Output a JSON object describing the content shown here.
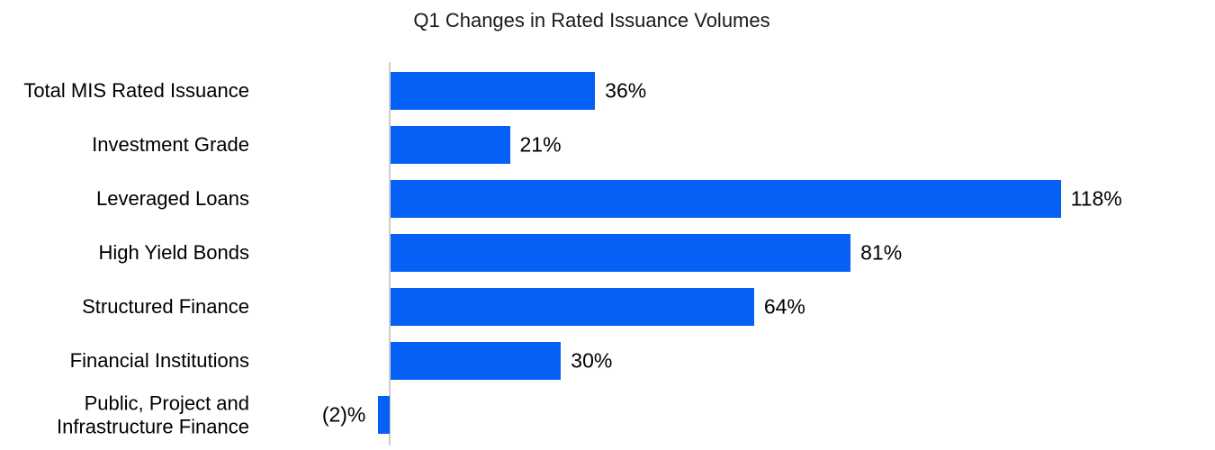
{
  "chart_data": {
    "type": "bar",
    "orientation": "horizontal",
    "title": "Q1 Changes in Rated Issuance Volumes",
    "categories": [
      "Total MIS Rated Issuance",
      "Investment Grade",
      "Leveraged Loans",
      "High Yield Bonds",
      "Structured Finance",
      "Financial Institutions",
      "Public, Project and Infrastructure Finance"
    ],
    "values": [
      36,
      21,
      118,
      81,
      64,
      30,
      -2
    ],
    "value_labels": [
      "36%",
      "21%",
      "118%",
      "81%",
      "64%",
      "30%",
      "(2)%"
    ],
    "xlabel": "",
    "ylabel": "",
    "grid": false,
    "legend": false,
    "x_axis_tick_labels_visible": false,
    "zero_line_visible": true,
    "colors": {
      "bar": "#0561F5",
      "axis_line": "#cccccc",
      "title_text": "#1a1a1a",
      "label_text": "#000000",
      "background": "#ffffff"
    }
  }
}
